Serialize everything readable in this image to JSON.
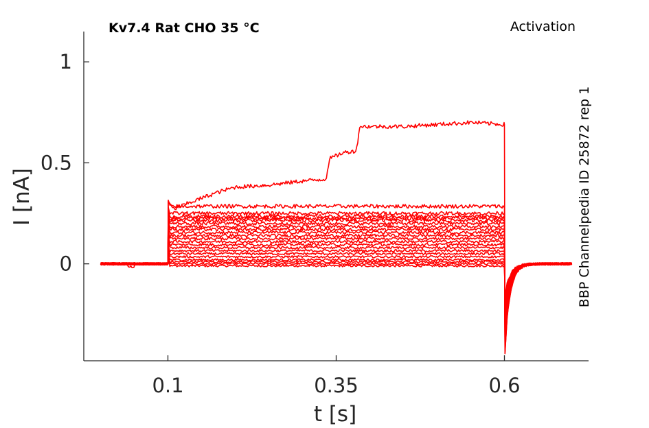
{
  "chart_data": {
    "type": "line",
    "title": "Kv7.4  Rat  CHO  35 °C",
    "subtitle": "Activation",
    "side_label": "BBP Channelpedia ID 25872 rep 1",
    "xlabel": "t [s]",
    "ylabel": "I [nA]",
    "xlim": [
      -0.025,
      0.725
    ],
    "ylim": [
      -0.48,
      1.15
    ],
    "x_ticks": [
      {
        "value": 0.1,
        "label": "0.1"
      },
      {
        "value": 0.35,
        "label": "0.35"
      },
      {
        "value": 0.6,
        "label": "0.6"
      }
    ],
    "y_ticks": [
      {
        "value": 0,
        "label": "0"
      },
      {
        "value": 0.5,
        "label": "0.5"
      },
      {
        "value": 1,
        "label": "1"
      }
    ],
    "grid": false,
    "legend": "none",
    "trace_color": "#ff0000",
    "trace_t_start": 0.0,
    "trace_t_end": 0.7,
    "step_start": 0.1,
    "step_end": 0.6,
    "baseline": 0.0,
    "tail_min": -0.44,
    "steady_levels": [
      -0.01,
      0.0,
      0.01,
      0.02,
      0.035,
      0.05,
      0.065,
      0.08,
      0.095,
      0.11,
      0.125,
      0.14,
      0.155,
      0.17,
      0.185,
      0.2,
      0.215,
      0.225,
      0.235,
      0.25,
      0.285
    ],
    "largest_trace": [
      {
        "t": 0.1,
        "i": 0.31
      },
      {
        "t": 0.108,
        "i": 0.27
      },
      {
        "t": 0.13,
        "i": 0.3
      },
      {
        "t": 0.17,
        "i": 0.35
      },
      {
        "t": 0.2,
        "i": 0.38
      },
      {
        "t": 0.25,
        "i": 0.39
      },
      {
        "t": 0.3,
        "i": 0.41
      },
      {
        "t": 0.335,
        "i": 0.42
      },
      {
        "t": 0.34,
        "i": 0.52
      },
      {
        "t": 0.36,
        "i": 0.55
      },
      {
        "t": 0.38,
        "i": 0.56
      },
      {
        "t": 0.385,
        "i": 0.68
      },
      {
        "t": 0.45,
        "i": 0.68
      },
      {
        "t": 0.55,
        "i": 0.7
      },
      {
        "t": 0.6,
        "i": 0.69
      }
    ]
  }
}
